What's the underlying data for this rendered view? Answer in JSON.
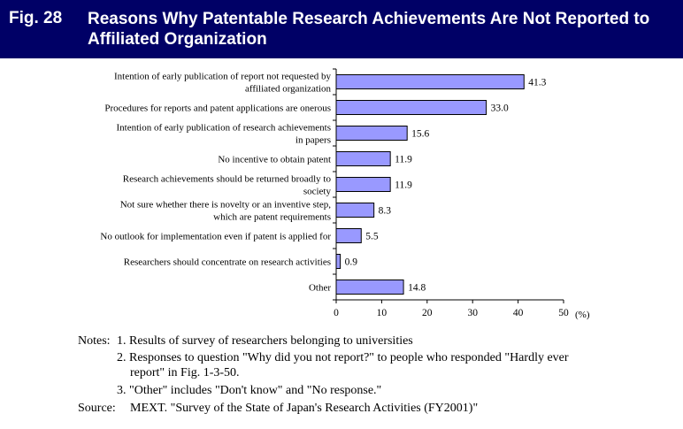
{
  "figure": {
    "number": "Fig. 28",
    "title": "Reasons Why Patentable Research Achievements Are Not Reported to Affiliated Organization"
  },
  "chart_data": {
    "type": "bar",
    "orientation": "horizontal",
    "categories": [
      [
        "Intention of early publication of report not requested by",
        "affiliated organization"
      ],
      [
        "Procedures for reports and patent applications are onerous"
      ],
      [
        "Intention of early publication of research achievements",
        "in papers"
      ],
      [
        "No incentive to obtain patent"
      ],
      [
        "Research achievements should be returned broadly to",
        "society"
      ],
      [
        "Not sure whether there is novelty or an inventive step,",
        "which are patent requirements"
      ],
      [
        "No outlook for implementation even if patent is applied for"
      ],
      [
        "Researchers should concentrate on research activities"
      ],
      [
        "Other"
      ]
    ],
    "values": [
      41.3,
      33.0,
      15.6,
      11.9,
      11.9,
      8.3,
      5.5,
      0.9,
      14.8
    ],
    "value_labels": [
      "41.3",
      "33.0",
      "15.6",
      "11.9",
      "11.9",
      "8.3",
      "5.5",
      "0.9",
      "14.8"
    ],
    "xlim": [
      0,
      50
    ],
    "xticks": [
      "0",
      "10",
      "20",
      "30",
      "40",
      "50"
    ],
    "unit": "(%)",
    "bar_color": "#9999ff",
    "grid": false
  },
  "notes": {
    "label": "Notes:",
    "items": [
      "1. Results of survey of researchers belonging to universities",
      "2. Responses to question \"Why did you not report?\" to people who responded \"Hardly ever",
      "report\" in Fig. 1-3-50.",
      "3. \"Other\" includes \"Don't know\" and \"No response.\""
    ],
    "source_label": "Source:",
    "source": "MEXT. \"Survey of the State of Japan's Research Activities (FY2001)\""
  }
}
